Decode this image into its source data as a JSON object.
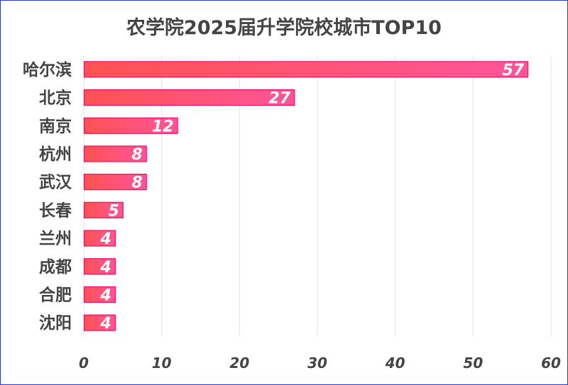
{
  "chart_data": {
    "type": "bar",
    "orientation": "horizontal",
    "title": "农学院2025届升学院校城市TOP10",
    "categories": [
      "哈尔滨",
      "北京",
      "南京",
      "杭州",
      "武汉",
      "长春",
      "兰州",
      "成都",
      "合肥",
      "沈阳"
    ],
    "values": [
      57,
      27,
      12,
      8,
      8,
      5,
      4,
      4,
      4,
      4
    ],
    "xlim": [
      0,
      60
    ],
    "xticks": [
      0,
      10,
      20,
      30,
      40,
      50,
      60
    ],
    "grid": true,
    "data_labels": true,
    "colors": {
      "bar_start": "#ff5252",
      "bar_end": "#ff5599",
      "bar_border": "#ee1166",
      "text": "#444444",
      "grid": "#e3e3e3",
      "frame": "#2b3bd8"
    }
  }
}
